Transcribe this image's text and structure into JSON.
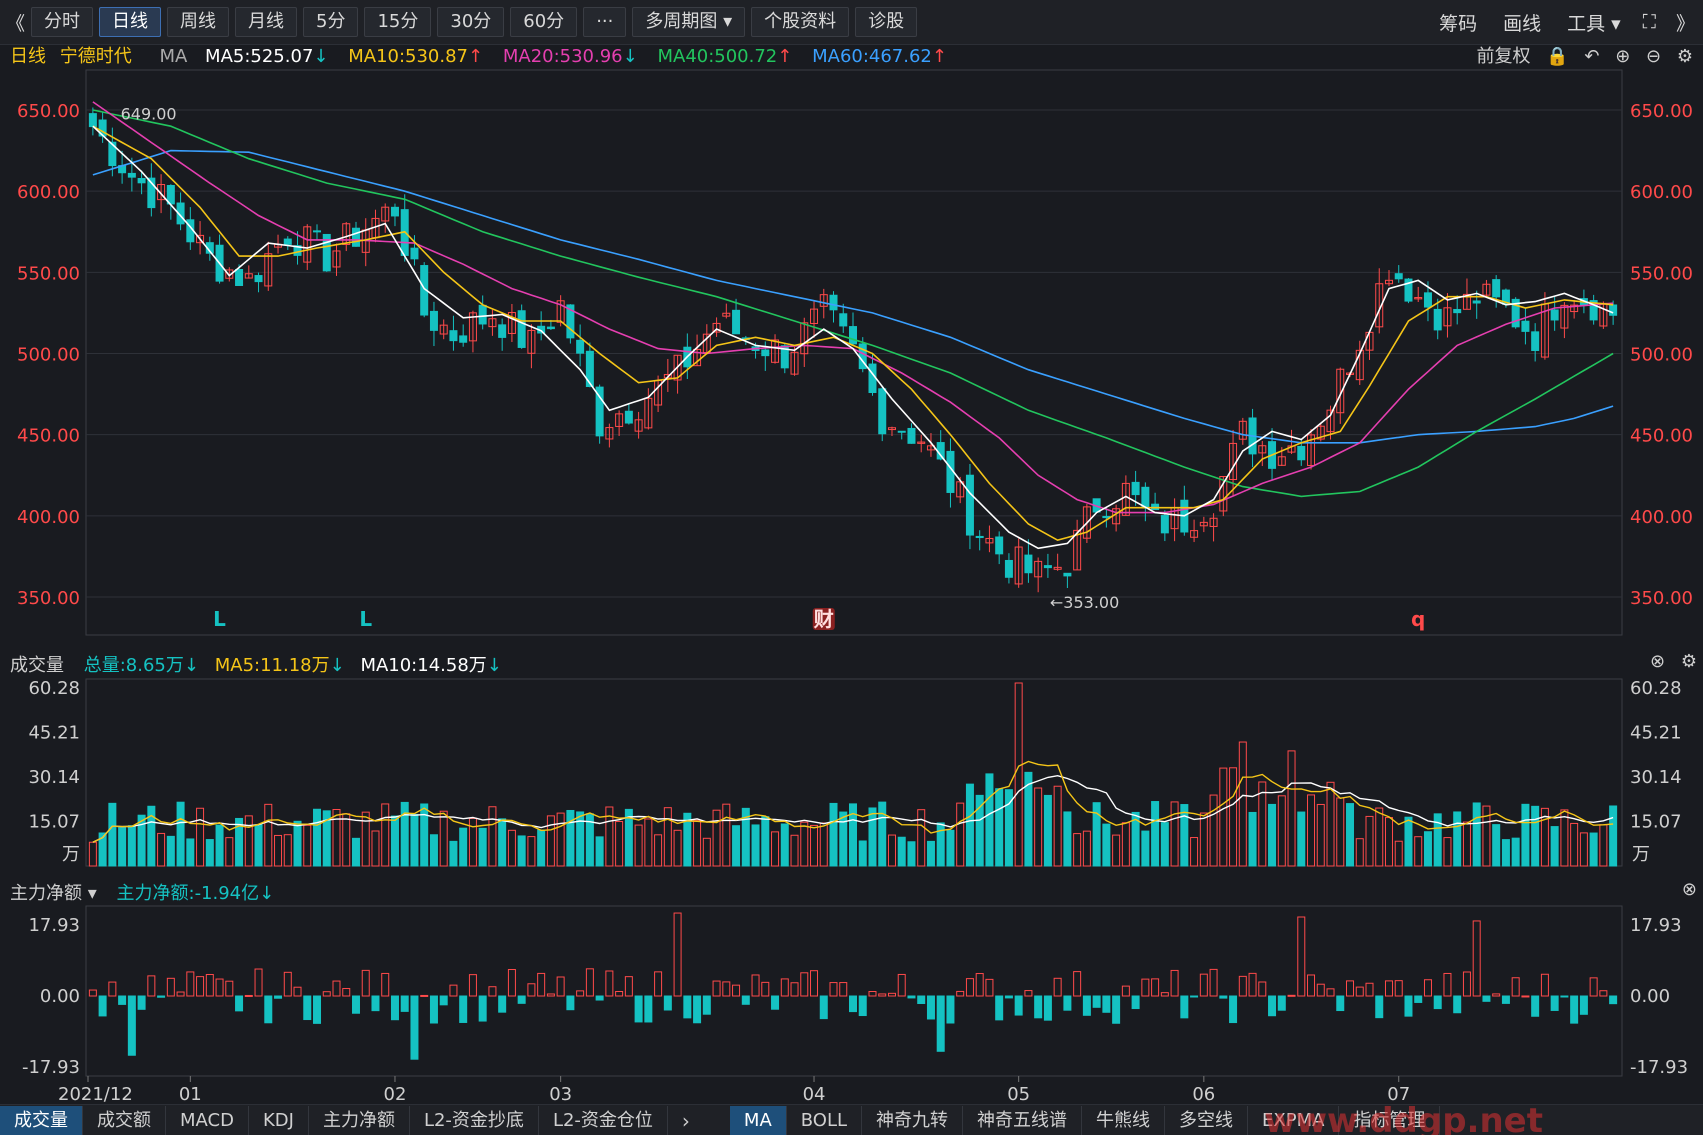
{
  "toolbar": {
    "left_arrow": "《",
    "periods": [
      "分时",
      "日线",
      "周线",
      "月线",
      "5分",
      "15分",
      "30分",
      "60分",
      "···",
      "多周期图 ▾",
      "个股资料",
      "诊股"
    ],
    "active_index": 1,
    "right_items": [
      "筹码",
      "画线",
      "工具 ▾"
    ],
    "right_arrow": "》"
  },
  "header": {
    "period": "日线",
    "stock": "宁德时代",
    "indicator": "MA",
    "ma5": "MA5:525.07",
    "ma10": "MA10:530.87",
    "ma20": "MA20:530.96",
    "ma40": "MA40:500.72",
    "ma60": "MA60:467.62",
    "ma5_dir": "down",
    "ma10_dir": "up",
    "ma20_dir": "down",
    "ma40_dir": "up",
    "ma60_dir": "up",
    "fq": "前复权"
  },
  "colors": {
    "up": "#ff4a4a",
    "down": "#15c2c2",
    "ma5": "#ffffff",
    "ma10": "#f5c518",
    "ma20": "#e53fb0",
    "ma40": "#22c55e",
    "ma60": "#3aa0ff",
    "grid": "#2e3138"
  },
  "volume_header": {
    "label": "成交量",
    "total": "总量:8.65万",
    "ma5": "MA5:11.18万",
    "ma10": "MA10:14.58万",
    "unit": "万"
  },
  "flow_header": {
    "label": "主力净额 ▾",
    "value": "主力净额:-1.94亿"
  },
  "bottom_tabs_left": [
    "成交量",
    "成交额",
    "MACD",
    "KDJ",
    "主力净额",
    "L2-资金抄底",
    "L2-资金仓位"
  ],
  "bottom_tabs_right": [
    "MA",
    "BOLL",
    "神奇九转",
    "神奇五线谱",
    "牛熊线",
    "多空线",
    "EXPMA",
    "指标管理"
  ],
  "bottom_left_active": 0,
  "bottom_right_active": 0,
  "watermark": "www.ddgp.net",
  "chart_data": [
    {
      "type": "candlestick",
      "y_ticks": [
        "650.00",
        "600.00",
        "550.00",
        "500.00",
        "450.00",
        "400.00",
        "350.00"
      ],
      "ylim": [
        340,
        660
      ],
      "x_ticks": [
        "2021/12",
        "01",
        "02",
        "03",
        "04",
        "05",
        "06",
        "07"
      ],
      "x_tick_index": [
        0,
        10,
        31,
        48,
        74,
        95,
        114,
        134
      ],
      "annotations": [
        {
          "text": "649.00",
          "kind": "high",
          "index": 1,
          "price": 649
        },
        {
          "text": "←353.00",
          "kind": "low",
          "index": 98,
          "price": 353
        }
      ],
      "markers": [
        {
          "text": "L",
          "index": 13,
          "color": "#15c2c2"
        },
        {
          "text": "L",
          "index": 28,
          "color": "#15c2c2"
        },
        {
          "text": "财",
          "index": 75,
          "color": "#ff4a4a"
        },
        {
          "text": "q",
          "index": 136,
          "color": "#ff4a4a"
        }
      ],
      "ma_end": {
        "ma5": 525.07,
        "ma10": 530.87,
        "ma20": 530.96,
        "ma40": 500.72,
        "ma60": 467.62
      },
      "close_anchors": [
        [
          0,
          640
        ],
        [
          4,
          610
        ],
        [
          8,
          590
        ],
        [
          12,
          558
        ],
        [
          16,
          545
        ],
        [
          20,
          575
        ],
        [
          24,
          560
        ],
        [
          28,
          578
        ],
        [
          31,
          590
        ],
        [
          34,
          525
        ],
        [
          37,
          512
        ],
        [
          41,
          525
        ],
        [
          45,
          505
        ],
        [
          48,
          530
        ],
        [
          52,
          458
        ],
        [
          56,
          470
        ],
        [
          60,
          488
        ],
        [
          64,
          520
        ],
        [
          67,
          510
        ],
        [
          71,
          500
        ],
        [
          75,
          525
        ],
        [
          78,
          500
        ],
        [
          81,
          462
        ],
        [
          85,
          448
        ],
        [
          88,
          420
        ],
        [
          91,
          390
        ],
        [
          94,
          372
        ],
        [
          97,
          363
        ],
        [
          100,
          372
        ],
        [
          103,
          408
        ],
        [
          106,
          415
        ],
        [
          109,
          395
        ],
        [
          112,
          398
        ],
        [
          115,
          410
        ],
        [
          118,
          450
        ],
        [
          121,
          440
        ],
        [
          124,
          445
        ],
        [
          127,
          470
        ],
        [
          130,
          510
        ],
        [
          133,
          555
        ],
        [
          136,
          535
        ],
        [
          139,
          522
        ],
        [
          142,
          535
        ],
        [
          145,
          527
        ],
        [
          148,
          512
        ],
        [
          151,
          540
        ],
        [
          154,
          532
        ],
        [
          156,
          525
        ]
      ],
      "ma_anchors": {
        "ma5": [
          [
            0,
            640
          ],
          [
            5,
            612
          ],
          [
            10,
            578
          ],
          [
            14,
            548
          ],
          [
            18,
            568
          ],
          [
            22,
            565
          ],
          [
            26,
            572
          ],
          [
            30,
            580
          ],
          [
            34,
            540
          ],
          [
            38,
            522
          ],
          [
            42,
            524
          ],
          [
            46,
            514
          ],
          [
            50,
            490
          ],
          [
            53,
            465
          ],
          [
            57,
            473
          ],
          [
            61,
            498
          ],
          [
            64,
            515
          ],
          [
            68,
            505
          ],
          [
            72,
            502
          ],
          [
            75,
            515
          ],
          [
            78,
            503
          ],
          [
            82,
            472
          ],
          [
            86,
            445
          ],
          [
            90,
            414
          ],
          [
            94,
            390
          ],
          [
            97,
            380
          ],
          [
            100,
            383
          ],
          [
            103,
            402
          ],
          [
            106,
            412
          ],
          [
            109,
            402
          ],
          [
            112,
            400
          ],
          [
            115,
            410
          ],
          [
            118,
            440
          ],
          [
            121,
            452
          ],
          [
            124,
            447
          ],
          [
            127,
            462
          ],
          [
            130,
            500
          ],
          [
            133,
            540
          ],
          [
            136,
            545
          ],
          [
            139,
            533
          ],
          [
            142,
            537
          ],
          [
            145,
            530
          ],
          [
            148,
            532
          ],
          [
            151,
            537
          ],
          [
            154,
            530
          ],
          [
            156,
            525
          ]
        ],
        "ma10": [
          [
            0,
            640
          ],
          [
            6,
            620
          ],
          [
            11,
            590
          ],
          [
            15,
            560
          ],
          [
            19,
            560
          ],
          [
            23,
            565
          ],
          [
            28,
            570
          ],
          [
            32,
            575
          ],
          [
            36,
            550
          ],
          [
            40,
            530
          ],
          [
            44,
            520
          ],
          [
            48,
            520
          ],
          [
            52,
            500
          ],
          [
            56,
            482
          ],
          [
            60,
            485
          ],
          [
            64,
            505
          ],
          [
            68,
            510
          ],
          [
            72,
            505
          ],
          [
            76,
            510
          ],
          [
            80,
            500
          ],
          [
            84,
            478
          ],
          [
            88,
            450
          ],
          [
            92,
            420
          ],
          [
            96,
            395
          ],
          [
            99,
            385
          ],
          [
            102,
            390
          ],
          [
            106,
            405
          ],
          [
            110,
            405
          ],
          [
            113,
            405
          ],
          [
            116,
            410
          ],
          [
            120,
            435
          ],
          [
            124,
            445
          ],
          [
            128,
            452
          ],
          [
            131,
            480
          ],
          [
            135,
            520
          ],
          [
            139,
            535
          ],
          [
            143,
            535
          ],
          [
            147,
            528
          ],
          [
            151,
            533
          ],
          [
            156,
            530
          ]
        ],
        "ma20": [
          [
            0,
            655
          ],
          [
            6,
            630
          ],
          [
            12,
            605
          ],
          [
            17,
            585
          ],
          [
            22,
            570
          ],
          [
            27,
            570
          ],
          [
            33,
            568
          ],
          [
            38,
            555
          ],
          [
            43,
            540
          ],
          [
            48,
            530
          ],
          [
            53,
            515
          ],
          [
            58,
            503
          ],
          [
            63,
            500
          ],
          [
            68,
            503
          ],
          [
            73,
            505
          ],
          [
            78,
            503
          ],
          [
            83,
            488
          ],
          [
            88,
            470
          ],
          [
            93,
            448
          ],
          [
            97,
            425
          ],
          [
            101,
            410
          ],
          [
            105,
            402
          ],
          [
            110,
            402
          ],
          [
            115,
            407
          ],
          [
            120,
            420
          ],
          [
            125,
            430
          ],
          [
            130,
            445
          ],
          [
            135,
            478
          ],
          [
            140,
            505
          ],
          [
            145,
            518
          ],
          [
            150,
            528
          ],
          [
            156,
            531
          ]
        ],
        "ma40": [
          [
            0,
            650
          ],
          [
            8,
            640
          ],
          [
            16,
            620
          ],
          [
            24,
            605
          ],
          [
            32,
            595
          ],
          [
            40,
            575
          ],
          [
            48,
            560
          ],
          [
            56,
            547
          ],
          [
            64,
            535
          ],
          [
            72,
            520
          ],
          [
            80,
            505
          ],
          [
            88,
            488
          ],
          [
            96,
            465
          ],
          [
            104,
            448
          ],
          [
            112,
            430
          ],
          [
            118,
            418
          ],
          [
            124,
            412
          ],
          [
            130,
            415
          ],
          [
            136,
            430
          ],
          [
            142,
            452
          ],
          [
            148,
            472
          ],
          [
            152,
            486
          ],
          [
            156,
            500
          ]
        ],
        "ma60": [
          [
            0,
            610
          ],
          [
            8,
            625
          ],
          [
            16,
            624
          ],
          [
            24,
            612
          ],
          [
            32,
            600
          ],
          [
            40,
            585
          ],
          [
            48,
            570
          ],
          [
            56,
            558
          ],
          [
            64,
            545
          ],
          [
            72,
            535
          ],
          [
            80,
            525
          ],
          [
            88,
            510
          ],
          [
            96,
            490
          ],
          [
            104,
            475
          ],
          [
            112,
            460
          ],
          [
            118,
            450
          ],
          [
            124,
            445
          ],
          [
            130,
            445
          ],
          [
            136,
            450
          ],
          [
            142,
            452
          ],
          [
            148,
            455
          ],
          [
            152,
            460
          ],
          [
            156,
            467.62
          ]
        ]
      }
    },
    {
      "type": "bar",
      "name": "成交量",
      "y_ticks": [
        "60.28",
        "45.21",
        "30.14",
        "15.07"
      ],
      "ylim": [
        0,
        62
      ],
      "spikes": [
        {
          "index": 95,
          "value": 62
        },
        {
          "index": 118,
          "value": 42
        },
        {
          "index": 123,
          "value": 39
        }
      ],
      "ma5_end": 11.18,
      "ma10_end": 14.58
    },
    {
      "type": "bar",
      "name": "主力净额",
      "y_ticks": [
        "17.93",
        "0.00",
        "-17.93"
      ],
      "ylim": [
        -20,
        20
      ],
      "spikes": [
        {
          "index": 60,
          "value": 21
        },
        {
          "index": 124,
          "value": 20
        },
        {
          "index": 142,
          "value": 19
        },
        {
          "index": 4,
          "value": -15
        },
        {
          "index": 33,
          "value": -16
        },
        {
          "index": 87,
          "value": -14
        }
      ],
      "last": -1.94
    }
  ]
}
